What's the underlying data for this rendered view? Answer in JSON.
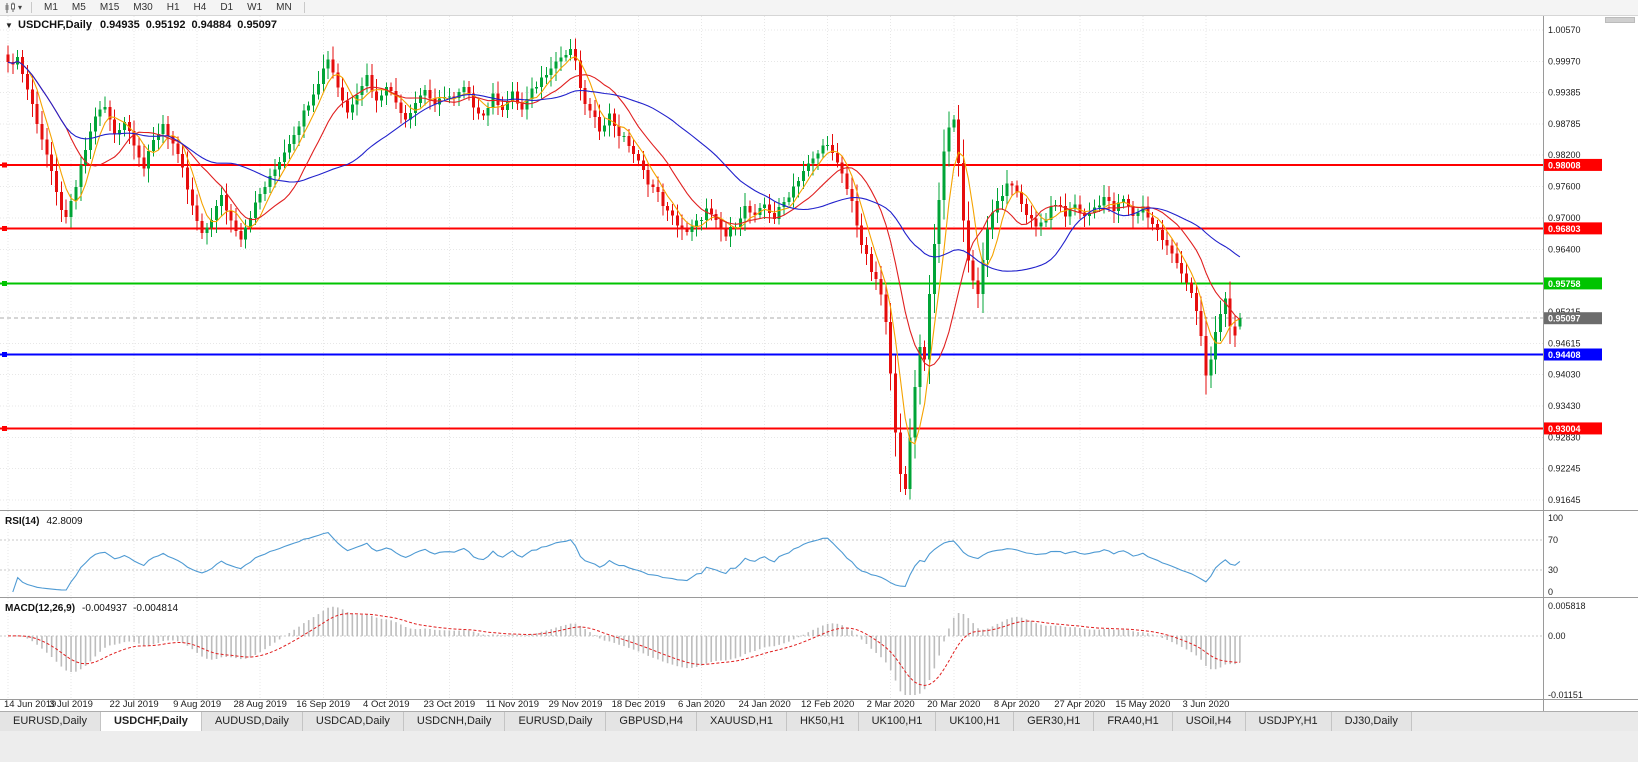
{
  "toolbar": {
    "timeframes": [
      "M1",
      "M5",
      "M15",
      "M30",
      "H1",
      "H4",
      "D1",
      "W1",
      "MN"
    ]
  },
  "chart": {
    "menu_arrow": "▼",
    "symbol_label": "USDCHF,Daily",
    "ohlc": {
      "open": "0.94935",
      "high": "0.95192",
      "low": "0.94884",
      "close": "0.95097"
    },
    "y_ticks": [
      "1.00570",
      "0.99970",
      "0.99385",
      "0.98785",
      "0.98200",
      "0.97600",
      "0.97000",
      "0.96400",
      "0.95215",
      "0.94615",
      "0.94030",
      "0.93430",
      "0.92830",
      "0.92245",
      "0.91645"
    ],
    "price_levels": [
      {
        "value": 0.98008,
        "label": "0.98008",
        "color": "#FF0000",
        "type": "resistance"
      },
      {
        "value": 0.96803,
        "label": "0.96803",
        "color": "#FF0000",
        "type": "resistance"
      },
      {
        "value": 0.95758,
        "label": "0.95758",
        "color": "#00C400",
        "type": "support"
      },
      {
        "value": 0.95097,
        "label": "0.95097",
        "color": "#6C6C6C",
        "type": "current-price"
      },
      {
        "value": 0.94408,
        "label": "0.94408",
        "color": "#0000FF",
        "type": "support"
      },
      {
        "value": 0.93004,
        "label": "0.93004",
        "color": "#FF0000",
        "type": "support"
      }
    ],
    "x_labels": [
      "14 Jun 2019",
      "3 Jul 2019",
      "22 Jul 2019",
      "9 Aug 2019",
      "28 Aug 2019",
      "16 Sep 2019",
      "4 Oct 2019",
      "23 Oct 2019",
      "11 Nov 2019",
      "29 Nov 2019",
      "18 Dec 2019",
      "6 Jan 2020",
      "24 Jan 2020",
      "12 Feb 2020",
      "2 Mar 2020",
      "20 Mar 2020",
      "8 Apr 2020",
      "27 Apr 2020",
      "15 May 2020",
      "3 Jun 2020"
    ]
  },
  "rsi": {
    "label": "RSI(14)",
    "value": "42.8009",
    "ticks": [
      "100",
      "70",
      "30",
      "0"
    ],
    "levels": [
      70,
      30
    ]
  },
  "macd": {
    "label": "MACD(12,26,9)",
    "main_value": "-0.004937",
    "signal_value": "-0.004814",
    "ticks": [
      "0.005818",
      "0.00",
      "-0.01151"
    ]
  },
  "tabs": {
    "active_index": 1,
    "items": [
      "EURUSD,Daily",
      "USDCHF,Daily",
      "AUDUSD,Daily",
      "USDCAD,Daily",
      "USDCNH,Daily",
      "EURUSD,Daily",
      "GBPUSD,H4",
      "XAUUSD,H1",
      "HK50,H1",
      "UK100,H1",
      "UK100,H1",
      "GER30,H1",
      "FRA40,H1",
      "USOil,H4",
      "USDJPY,H1",
      "DJ30,Daily"
    ]
  },
  "chart_data": {
    "type": "candlestick",
    "symbol": "USDCHF",
    "timeframe": "Daily",
    "title": "USDCHF,Daily",
    "price_max": 1.0057,
    "price_min": 0.91645,
    "candle_count": 255,
    "noise_amp": 0.0014,
    "clamp_high": 1.005,
    "clamp_low": 0.9165,
    "horizontal_levels": [
      0.98008,
      0.96803,
      0.95758,
      0.94408,
      0.93004
    ],
    "current_price": 0.95097,
    "indicators": [
      {
        "name": "RSI",
        "period": 14,
        "current": 42.8009,
        "range": [
          0,
          100
        ],
        "levels": [
          70,
          30
        ]
      },
      {
        "name": "MACD",
        "fast": 12,
        "slow": 26,
        "signal": 9,
        "current_main": -0.004937,
        "current_signal": -0.004814,
        "pane_max": 0.005818,
        "pane_min": -0.01151
      }
    ],
    "moving_average_periods": [
      5,
      13,
      34
    ],
    "colors": {
      "up": "#00A437",
      "down": "#E60D0D",
      "ma_fast": "#F5A300",
      "ma_mid": "#E02020",
      "ma_slow": "#2121CC",
      "rsi": "#4E9AD3",
      "macd_hist": "#BDBDBD",
      "macd_signal": "#E02020"
    },
    "price_keypoints": [
      [
        0,
        0.999
      ],
      [
        2,
        1.0005
      ],
      [
        5,
        0.9915
      ],
      [
        8,
        0.982
      ],
      [
        10,
        0.9745
      ],
      [
        12,
        0.9695
      ],
      [
        14,
        0.976
      ],
      [
        16,
        0.983
      ],
      [
        18,
        0.9895
      ],
      [
        20,
        0.991
      ],
      [
        22,
        0.986
      ],
      [
        24,
        0.9885
      ],
      [
        26,
        0.9845
      ],
      [
        28,
        0.9795
      ],
      [
        30,
        0.9845
      ],
      [
        32,
        0.988
      ],
      [
        34,
        0.984
      ],
      [
        36,
        0.979
      ],
      [
        38,
        0.972
      ],
      [
        40,
        0.9665
      ],
      [
        42,
        0.97
      ],
      [
        44,
        0.974
      ],
      [
        46,
        0.9695
      ],
      [
        48,
        0.9665
      ],
      [
        50,
        0.9705
      ],
      [
        52,
        0.9745
      ],
      [
        54,
        0.9775
      ],
      [
        56,
        0.981
      ],
      [
        58,
        0.9845
      ],
      [
        60,
        0.988
      ],
      [
        62,
        0.992
      ],
      [
        64,
        0.996
      ],
      [
        66,
        1.0005
      ],
      [
        68,
        0.995
      ],
      [
        70,
        0.99
      ],
      [
        72,
        0.994
      ],
      [
        74,
        0.997
      ],
      [
        76,
        0.992
      ],
      [
        78,
        0.9955
      ],
      [
        80,
        0.992
      ],
      [
        82,
        0.989
      ],
      [
        84,
        0.992
      ],
      [
        86,
        0.9945
      ],
      [
        88,
        0.991
      ],
      [
        90,
        0.9935
      ],
      [
        92,
        0.9925
      ],
      [
        94,
        0.9945
      ],
      [
        96,
        0.9915
      ],
      [
        98,
        0.9895
      ],
      [
        100,
        0.993
      ],
      [
        102,
        0.991
      ],
      [
        104,
        0.9935
      ],
      [
        106,
        0.9905
      ],
      [
        108,
        0.994
      ],
      [
        110,
        0.9965
      ],
      [
        112,
        0.999
      ],
      [
        114,
        1.0005
      ],
      [
        116,
        1.0015
      ],
      [
        117,
        1.0
      ],
      [
        118,
        0.994
      ],
      [
        120,
        0.99
      ],
      [
        122,
        0.987
      ],
      [
        124,
        0.9895
      ],
      [
        126,
        0.986
      ],
      [
        128,
        0.984
      ],
      [
        130,
        0.9805
      ],
      [
        132,
        0.977
      ],
      [
        134,
        0.9745
      ],
      [
        136,
        0.971
      ],
      [
        138,
        0.969
      ],
      [
        140,
        0.967
      ],
      [
        142,
        0.969
      ],
      [
        144,
        0.9715
      ],
      [
        146,
        0.969
      ],
      [
        148,
        0.9665
      ],
      [
        150,
        0.969
      ],
      [
        152,
        0.972
      ],
      [
        154,
        0.97
      ],
      [
        156,
        0.9725
      ],
      [
        158,
        0.97
      ],
      [
        160,
        0.973
      ],
      [
        162,
        0.976
      ],
      [
        164,
        0.979
      ],
      [
        166,
        0.981
      ],
      [
        168,
        0.9835
      ],
      [
        169,
        0.9845
      ],
      [
        170,
        0.982
      ],
      [
        172,
        0.978
      ],
      [
        174,
        0.973
      ],
      [
        176,
        0.965
      ],
      [
        178,
        0.96
      ],
      [
        180,
        0.9555
      ],
      [
        181,
        0.95
      ],
      [
        182,
        0.94
      ],
      [
        183,
        0.93
      ],
      [
        184,
        0.922
      ],
      [
        185,
        0.918
      ],
      [
        186,
        0.928
      ],
      [
        187,
        0.938
      ],
      [
        188,
        0.946
      ],
      [
        189,
        0.943
      ],
      [
        190,
        0.956
      ],
      [
        191,
        0.965
      ],
      [
        192,
        0.974
      ],
      [
        193,
        0.982
      ],
      [
        194,
        0.987
      ],
      [
        195,
        0.989
      ],
      [
        196,
        0.98
      ],
      [
        197,
        0.97
      ],
      [
        198,
        0.962
      ],
      [
        199,
        0.958
      ],
      [
        200,
        0.956
      ],
      [
        201,
        0.962
      ],
      [
        202,
        0.968
      ],
      [
        204,
        0.973
      ],
      [
        206,
        0.976
      ],
      [
        208,
        0.975
      ],
      [
        210,
        0.971
      ],
      [
        212,
        0.968
      ],
      [
        214,
        0.97
      ],
      [
        216,
        0.973
      ],
      [
        218,
        0.9705
      ],
      [
        220,
        0.9726
      ],
      [
        222,
        0.97
      ],
      [
        224,
        0.972
      ],
      [
        226,
        0.974
      ],
      [
        228,
        0.9715
      ],
      [
        230,
        0.9735
      ],
      [
        232,
        0.9705
      ],
      [
        234,
        0.972
      ],
      [
        236,
        0.969
      ],
      [
        238,
        0.966
      ],
      [
        240,
        0.963
      ],
      [
        242,
        0.96
      ],
      [
        244,
        0.956
      ],
      [
        245,
        0.952
      ],
      [
        246,
        0.947
      ],
      [
        247,
        0.94
      ],
      [
        248,
        0.943
      ],
      [
        249,
        0.948
      ],
      [
        250,
        0.952
      ],
      [
        251,
        0.9545
      ],
      [
        252,
        0.95
      ],
      [
        253,
        0.947
      ],
      [
        254,
        0.95097
      ]
    ]
  }
}
